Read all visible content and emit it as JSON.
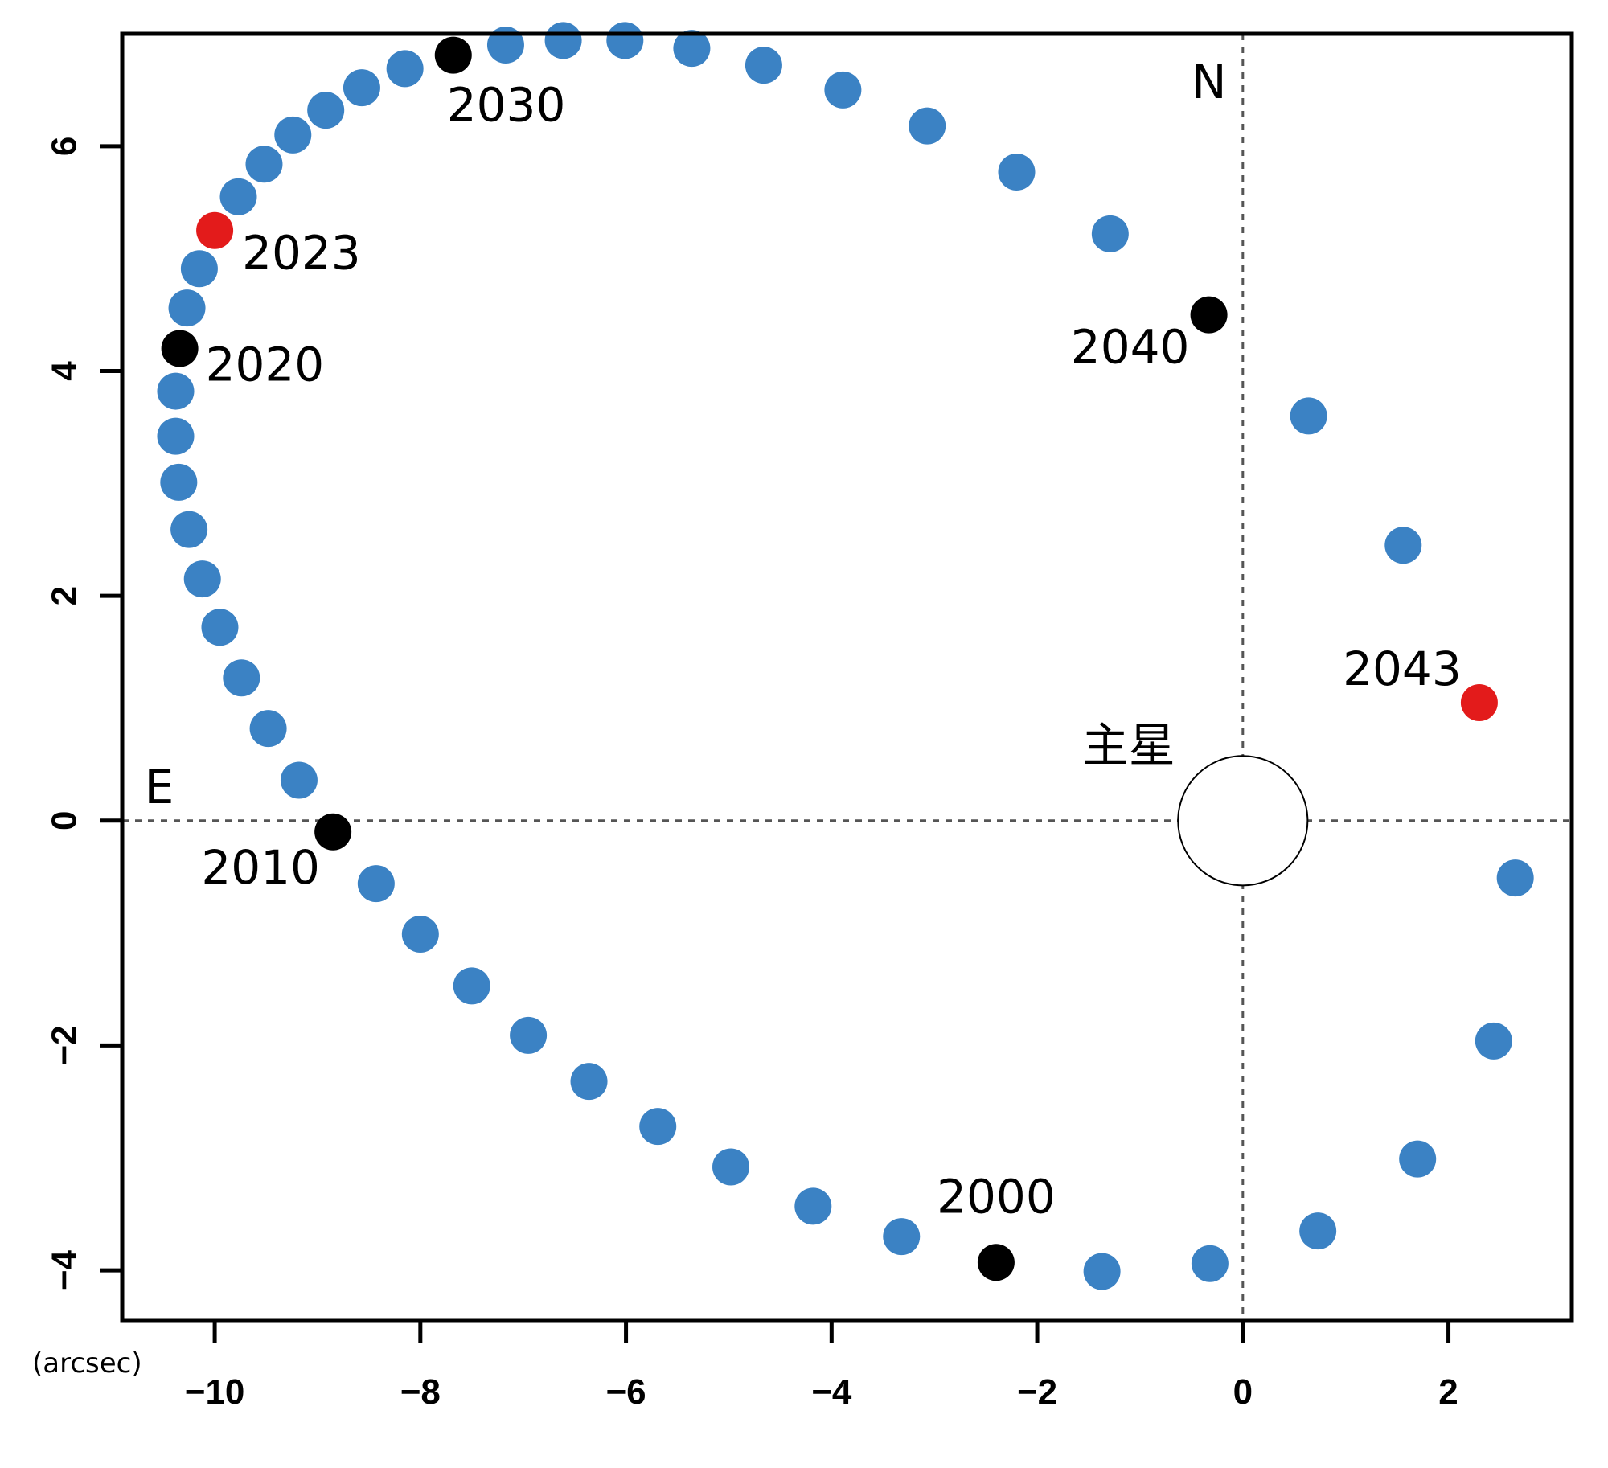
{
  "chart_data": {
    "type": "scatter",
    "x_unit_label": "(arcsec)",
    "xlim": [
      -10.9,
      3.2
    ],
    "ylim": [
      -4.45,
      7.0
    ],
    "x_ticks": [
      -10,
      -8,
      -6,
      -4,
      -2,
      0,
      2
    ],
    "y_ticks": [
      -4,
      -2,
      0,
      2,
      4,
      6
    ],
    "x_tick_labels": [
      "−10",
      "−8",
      "−6",
      "−4",
      "−2",
      "0",
      "2"
    ],
    "y_tick_labels": [
      "−4",
      "−2",
      "0",
      "2",
      "4",
      "6"
    ],
    "grid": false,
    "colors": {
      "orbit": "#3b82c4",
      "marker_black": "#000000",
      "marker_red": "#e31b1b",
      "reference_line": "#555555",
      "frame": "#000000"
    },
    "reference_lines": {
      "vertical_x": 0,
      "horizontal_y": 0,
      "north_label": "N",
      "east_label": "E"
    },
    "primary_star": {
      "x": 0,
      "y": 0,
      "label": "主星",
      "radius_data_units": 0.63
    },
    "orbit_points": [
      {
        "x": -2.4,
        "y": -3.93,
        "marker": "black",
        "label": "2000"
      },
      {
        "x": -1.37,
        "y": -4.01
      },
      {
        "x": -0.32,
        "y": -3.94
      },
      {
        "x": 0.73,
        "y": -3.65
      },
      {
        "x": 1.7,
        "y": -3.01
      },
      {
        "x": 2.44,
        "y": -1.96
      },
      {
        "x": 2.65,
        "y": -0.51
      },
      {
        "x": 2.3,
        "y": 1.05,
        "marker": "red",
        "label": "2043"
      },
      {
        "x": 1.56,
        "y": 2.45
      },
      {
        "x": 0.64,
        "y": 3.6
      },
      {
        "x": -0.33,
        "y": 4.5,
        "marker": "black",
        "label": "2040"
      },
      {
        "x": -1.29,
        "y": 5.22
      },
      {
        "x": -2.2,
        "y": 5.77
      },
      {
        "x": -3.07,
        "y": 6.18
      },
      {
        "x": -3.89,
        "y": 6.5
      },
      {
        "x": -4.66,
        "y": 6.72
      },
      {
        "x": -5.36,
        "y": 6.87
      },
      {
        "x": -6.01,
        "y": 6.94
      },
      {
        "x": -6.61,
        "y": 6.94
      },
      {
        "x": -7.17,
        "y": 6.9
      },
      {
        "x": -7.68,
        "y": 6.81,
        "marker": "black",
        "label": "2030"
      },
      {
        "x": -8.15,
        "y": 6.69
      },
      {
        "x": -8.57,
        "y": 6.52
      },
      {
        "x": -8.92,
        "y": 6.32
      },
      {
        "x": -9.24,
        "y": 6.1
      },
      {
        "x": -9.52,
        "y": 5.84
      },
      {
        "x": -9.77,
        "y": 5.55
      },
      {
        "x": -10.0,
        "y": 5.25,
        "marker": "red",
        "label": "2023"
      },
      {
        "x": -10.15,
        "y": 4.91
      },
      {
        "x": -10.27,
        "y": 4.56
      },
      {
        "x": -10.34,
        "y": 4.2,
        "marker": "black",
        "label": "2020"
      },
      {
        "x": -10.38,
        "y": 3.82
      },
      {
        "x": -10.38,
        "y": 3.42
      },
      {
        "x": -10.35,
        "y": 3.01
      },
      {
        "x": -10.25,
        "y": 2.59
      },
      {
        "x": -10.12,
        "y": 2.15
      },
      {
        "x": -9.95,
        "y": 1.72
      },
      {
        "x": -9.74,
        "y": 1.27
      },
      {
        "x": -9.48,
        "y": 0.82
      },
      {
        "x": -9.18,
        "y": 0.36
      },
      {
        "x": -8.85,
        "y": -0.1,
        "marker": "black",
        "label": "2010"
      },
      {
        "x": -8.43,
        "y": -0.56
      },
      {
        "x": -8.0,
        "y": -1.01
      },
      {
        "x": -7.5,
        "y": -1.47
      },
      {
        "x": -6.95,
        "y": -1.91
      },
      {
        "x": -6.36,
        "y": -2.32
      },
      {
        "x": -5.69,
        "y": -2.72
      },
      {
        "x": -4.98,
        "y": -3.08
      },
      {
        "x": -4.18,
        "y": -3.43
      },
      {
        "x": -3.32,
        "y": -3.7
      }
    ]
  }
}
